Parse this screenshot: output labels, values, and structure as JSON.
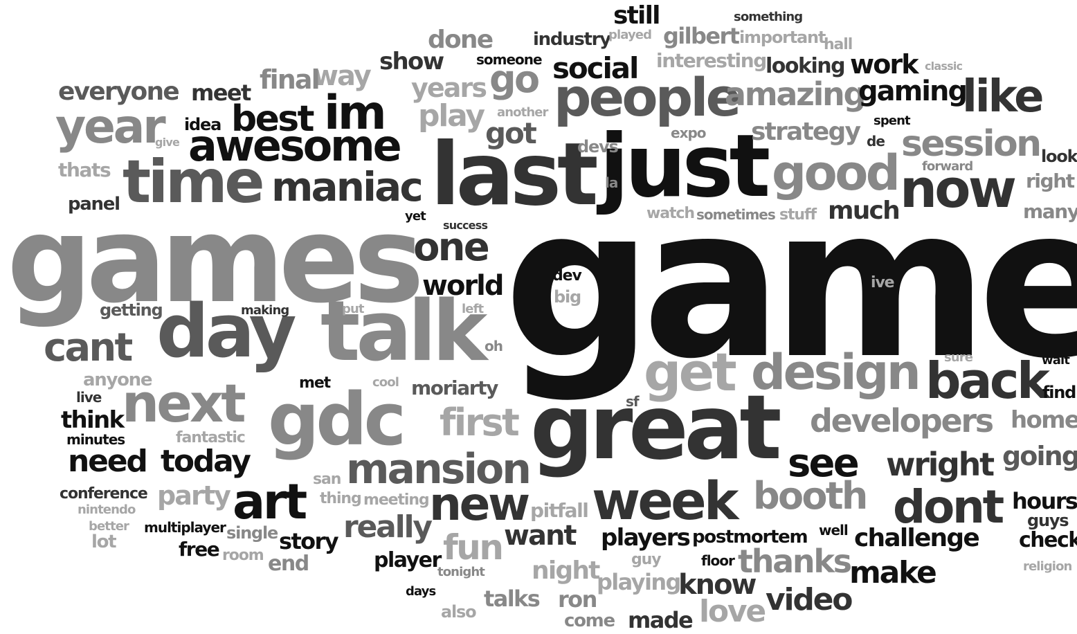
{
  "palette": {
    "black": "#111111",
    "dark": "#333333",
    "mid": "#5a5a5a",
    "gray": "#888888",
    "light": "#a6a6a6"
  },
  "words": [
    {
      "text": "game",
      "tone": "black"
    },
    {
      "text": "games",
      "tone": "gray"
    },
    {
      "text": "last",
      "tone": "dark"
    },
    {
      "text": "just",
      "tone": "black"
    },
    {
      "text": "great",
      "tone": "dark"
    },
    {
      "text": "talk",
      "tone": "gray"
    },
    {
      "text": "day",
      "tone": "mid"
    },
    {
      "text": "gdc",
      "tone": "gray"
    },
    {
      "text": "time",
      "tone": "mid"
    },
    {
      "text": "week",
      "tone": "dark"
    },
    {
      "text": "people",
      "tone": "mid"
    },
    {
      "text": "now",
      "tone": "dark"
    },
    {
      "text": "good",
      "tone": "gray"
    },
    {
      "text": "design",
      "tone": "gray"
    },
    {
      "text": "awesome",
      "tone": "black"
    },
    {
      "text": "next",
      "tone": "gray"
    },
    {
      "text": "get",
      "tone": "light"
    },
    {
      "text": "back",
      "tone": "dark"
    },
    {
      "text": "im",
      "tone": "black"
    },
    {
      "text": "year",
      "tone": "gray"
    },
    {
      "text": "maniac",
      "tone": "dark"
    },
    {
      "text": "art",
      "tone": "black"
    },
    {
      "text": "new",
      "tone": "dark"
    },
    {
      "text": "mansion",
      "tone": "mid"
    },
    {
      "text": "dont",
      "tone": "dark"
    },
    {
      "text": "one",
      "tone": "dark"
    },
    {
      "text": "see",
      "tone": "black"
    },
    {
      "text": "like",
      "tone": "dark"
    },
    {
      "text": "session",
      "tone": "gray"
    },
    {
      "text": "best",
      "tone": "black"
    },
    {
      "text": "first",
      "tone": "light"
    },
    {
      "text": "booth",
      "tone": "gray"
    },
    {
      "text": "cant",
      "tone": "mid"
    },
    {
      "text": "developers",
      "tone": "gray"
    },
    {
      "text": "amazing",
      "tone": "gray"
    },
    {
      "text": "go",
      "tone": "gray"
    },
    {
      "text": "play",
      "tone": "light"
    },
    {
      "text": "thanks",
      "tone": "gray"
    },
    {
      "text": "fun",
      "tone": "light"
    },
    {
      "text": "need",
      "tone": "black"
    },
    {
      "text": "today",
      "tone": "black"
    },
    {
      "text": "wright",
      "tone": "dark"
    },
    {
      "text": "make",
      "tone": "black"
    },
    {
      "text": "social",
      "tone": "black"
    },
    {
      "text": "world",
      "tone": "black"
    },
    {
      "text": "gaming",
      "tone": "black"
    },
    {
      "text": "really",
      "tone": "mid"
    },
    {
      "text": "way",
      "tone": "light"
    },
    {
      "text": "everyone",
      "tone": "mid"
    },
    {
      "text": "final",
      "tone": "gray"
    },
    {
      "text": "years",
      "tone": "light"
    },
    {
      "text": "got",
      "tone": "mid"
    },
    {
      "text": "strategy",
      "tone": "gray"
    },
    {
      "text": "much",
      "tone": "dark"
    },
    {
      "text": "going",
      "tone": "mid"
    },
    {
      "text": "work",
      "tone": "black"
    },
    {
      "text": "love",
      "tone": "light"
    },
    {
      "text": "video",
      "tone": "dark"
    },
    {
      "text": "want",
      "tone": "dark"
    },
    {
      "text": "know",
      "tone": "dark"
    },
    {
      "text": "challenge",
      "tone": "black"
    },
    {
      "text": "players",
      "tone": "black"
    },
    {
      "text": "party",
      "tone": "light"
    },
    {
      "text": "home",
      "tone": "gray"
    },
    {
      "text": "done",
      "tone": "gray"
    },
    {
      "text": "show",
      "tone": "dark"
    },
    {
      "text": "hours",
      "tone": "black"
    },
    {
      "text": "night",
      "tone": "light"
    },
    {
      "text": "moriarty",
      "tone": "mid"
    },
    {
      "text": "looking",
      "tone": "dark"
    },
    {
      "text": "meet",
      "tone": "dark"
    },
    {
      "text": "think",
      "tone": "black"
    },
    {
      "text": "still",
      "tone": "black"
    },
    {
      "text": "gilbert",
      "tone": "gray"
    },
    {
      "text": "story",
      "tone": "black"
    },
    {
      "text": "postmortem",
      "tone": "black"
    },
    {
      "text": "player",
      "tone": "black"
    },
    {
      "text": "check",
      "tone": "black"
    },
    {
      "text": "playing",
      "tone": "light"
    },
    {
      "text": "talks",
      "tone": "gray"
    },
    {
      "text": "ron",
      "tone": "gray"
    },
    {
      "text": "made",
      "tone": "dark"
    },
    {
      "text": "end",
      "tone": "gray"
    },
    {
      "text": "free",
      "tone": "black"
    },
    {
      "text": "find",
      "tone": "black"
    },
    {
      "text": "right",
      "tone": "gray"
    },
    {
      "text": "many",
      "tone": "gray"
    },
    {
      "text": "thats",
      "tone": "light"
    },
    {
      "text": "panel",
      "tone": "dark"
    },
    {
      "text": "interesting",
      "tone": "light"
    },
    {
      "text": "industry",
      "tone": "dark"
    },
    {
      "text": "important",
      "tone": "light"
    },
    {
      "text": "pitfall",
      "tone": "light"
    },
    {
      "text": "single",
      "tone": "gray"
    },
    {
      "text": "anyone",
      "tone": "light"
    },
    {
      "text": "conference",
      "tone": "dark"
    },
    {
      "text": "fantastic",
      "tone": "light"
    },
    {
      "text": "getting",
      "tone": "mid"
    },
    {
      "text": "idea",
      "tone": "black"
    },
    {
      "text": "stuff",
      "tone": "light"
    },
    {
      "text": "devs",
      "tone": "gray"
    },
    {
      "text": "look",
      "tone": "dark"
    },
    {
      "text": "guys",
      "tone": "dark"
    },
    {
      "text": "lot",
      "tone": "light"
    },
    {
      "text": "sometimes",
      "tone": "gray"
    },
    {
      "text": "watch",
      "tone": "light"
    },
    {
      "text": "hall",
      "tone": "light"
    },
    {
      "text": "also",
      "tone": "light"
    },
    {
      "text": "come",
      "tone": "gray"
    },
    {
      "text": "live",
      "tone": "dark"
    },
    {
      "text": "minutes",
      "tone": "black"
    },
    {
      "text": "multiplayer",
      "tone": "black"
    },
    {
      "text": "room",
      "tone": "light"
    },
    {
      "text": "dev",
      "tone": "black"
    },
    {
      "text": "big",
      "tone": "light"
    },
    {
      "text": "someone",
      "tone": "black"
    },
    {
      "text": "something",
      "tone": "dark"
    },
    {
      "text": "played",
      "tone": "light"
    },
    {
      "text": "classic",
      "tone": "light"
    },
    {
      "text": "another",
      "tone": "light"
    },
    {
      "text": "spent",
      "tone": "black"
    },
    {
      "text": "expo",
      "tone": "gray"
    },
    {
      "text": "de",
      "tone": "dark"
    },
    {
      "text": "forward",
      "tone": "gray"
    },
    {
      "text": "la",
      "tone": "gray"
    },
    {
      "text": "give",
      "tone": "light"
    },
    {
      "text": "yet",
      "tone": "black"
    },
    {
      "text": "success",
      "tone": "dark"
    },
    {
      "text": "ive",
      "tone": "light"
    },
    {
      "text": "making",
      "tone": "dark"
    },
    {
      "text": "put",
      "tone": "light"
    },
    {
      "text": "left",
      "tone": "light"
    },
    {
      "text": "oh",
      "tone": "gray"
    },
    {
      "text": "met",
      "tone": "black"
    },
    {
      "text": "cool",
      "tone": "light"
    },
    {
      "text": "sure",
      "tone": "light"
    },
    {
      "text": "wait",
      "tone": "black"
    },
    {
      "text": "sf",
      "tone": "mid"
    },
    {
      "text": "san",
      "tone": "light"
    },
    {
      "text": "thing",
      "tone": "light"
    },
    {
      "text": "meeting",
      "tone": "light"
    },
    {
      "text": "nintendo",
      "tone": "light"
    },
    {
      "text": "better",
      "tone": "light"
    },
    {
      "text": "well",
      "tone": "black"
    },
    {
      "text": "guy",
      "tone": "light"
    },
    {
      "text": "floor",
      "tone": "black"
    },
    {
      "text": "tonight",
      "tone": "gray"
    },
    {
      "text": "days",
      "tone": "black"
    },
    {
      "text": "religion",
      "tone": "light"
    }
  ]
}
